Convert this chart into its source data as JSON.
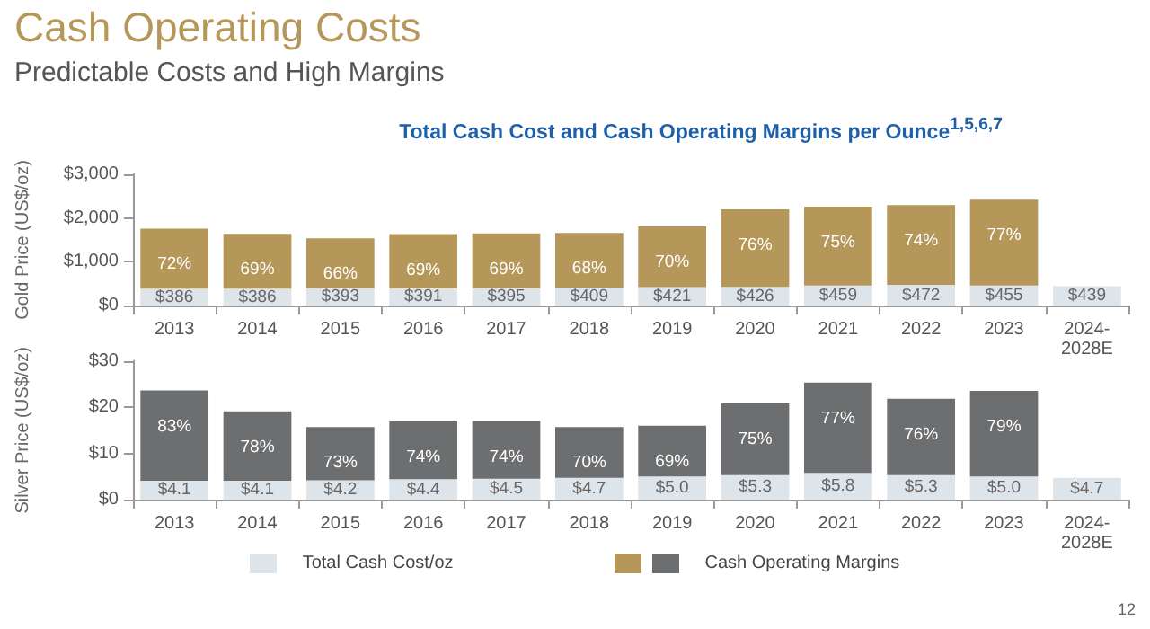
{
  "chart_data": [
    {
      "type": "bar",
      "title": "Cash Operating Costs",
      "subtitle": "Predictable Costs and High Margins",
      "annotations": [
        "Total Cash Cost and Cash Operating Margins per Ounce$^{1,5,6,7}$",
        {
          "text": "72%",
          "x": "2013",
          "y": 1756
        },
        {
          "text": "69%",
          "x": "2014",
          "y": 1636
        },
        {
          "text": "66%",
          "x": "2015",
          "y": 1533
        },
        {
          "text": "69%",
          "x": "2016",
          "y": 1631
        },
        {
          "text": "69%",
          "x": "2017",
          "y": 1645
        },
        {
          "text": "68%",
          "x": "2018",
          "y": 1659
        },
        {
          "text": "70%",
          "x": "2019",
          "y": 1811
        },
        {
          "text": "76%",
          "x": "2020",
          "y": 2196
        },
        {
          "text": "75%",
          "x": "2021",
          "y": 2259
        },
        {
          "text": "74%",
          "x": "2022",
          "y": 2292
        },
        {
          "text": "77%",
          "x": "2023",
          "y": 2415
        }
      ],
      "ylabel": "Gold Price (US$/oz)",
      "stacked": true,
      "categories": [
        "2013",
        "2014",
        "2015",
        "2016",
        "2017",
        "2018",
        "2019",
        "2020",
        "2021",
        "2022",
        "2023",
        "2024-2028E"
      ],
      "ylim": [
        0,
        3000
      ],
      "yticks": [
        {
          "value": 0,
          "label": "$0"
        },
        {
          "value": 1000,
          "label": "$1,000"
        },
        {
          "value": 2000,
          "label": "$2,000"
        },
        {
          "value": 3000,
          "label": "$3,000"
        }
      ],
      "series": [
        {
          "color": "#dde4ea",
          "values": [
            386,
            386,
            393,
            391,
            395,
            409,
            421,
            426,
            459,
            472,
            455,
            439
          ],
          "value_labels": [
            "$386",
            "$386",
            "$393",
            "$391",
            "$395",
            "$409",
            "$421",
            "$426",
            "$459",
            "$472",
            "$455",
            "$439"
          ]
        },
        {
          "color": "#b5975a",
          "values": [
            1370,
            1250,
            1140,
            1240,
            1250,
            1250,
            1390,
            1770,
            1800,
            1820,
            1960,
            null
          ]
        }
      ]
    },
    {
      "type": "bar",
      "ylabel": "Silver Price (US$/oz)",
      "stacked": true,
      "legend": "bottom",
      "annotations": [
        "12",
        {
          "text": "83%",
          "x": "2013",
          "y": 23.6
        },
        {
          "text": "78%",
          "x": "2014",
          "y": 19.1
        },
        {
          "text": "73%",
          "x": "2015",
          "y": 15.7
        },
        {
          "text": "74%",
          "x": "2016",
          "y": 16.9
        },
        {
          "text": "74%",
          "x": "2017",
          "y": 17
        },
        {
          "text": "70%",
          "x": "2018",
          "y": 15.7
        },
        {
          "text": "69%",
          "x": "2019",
          "y": 16
        },
        {
          "text": "75%",
          "x": "2020",
          "y": 20.8
        },
        {
          "text": "77%",
          "x": "2021",
          "y": 25.3
        },
        {
          "text": "76%",
          "x": "2022",
          "y": 21.8
        },
        {
          "text": "79%",
          "x": "2023",
          "y": 23.5
        }
      ],
      "categories": [
        "2013",
        "2014",
        "2015",
        "2016",
        "2017",
        "2018",
        "2019",
        "2020",
        "2021",
        "2022",
        "2023",
        "2024-2028E"
      ],
      "ylim": [
        0,
        30
      ],
      "yticks": [
        {
          "value": 0,
          "label": "$0"
        },
        {
          "value": 10,
          "label": "$10"
        },
        {
          "value": 20,
          "label": "$20"
        },
        {
          "value": 30,
          "label": "$30"
        }
      ],
      "series": [
        {
          "name": "Total Cash Cost/oz",
          "color": "#dde4ea",
          "values": [
            4.1,
            4.1,
            4.2,
            4.4,
            4.5,
            4.7,
            5.0,
            5.3,
            5.8,
            5.3,
            5.0,
            4.7
          ],
          "value_labels": [
            "$4.1",
            "$4.1",
            "$4.2",
            "$4.4",
            "$4.5",
            "$4.7",
            "$5.0",
            "$5.3",
            "$5.8",
            "$5.3",
            "$5.0",
            "$4.7"
          ]
        },
        {
          "name": "Cash Operating Margins",
          "color": "#6d6e70",
          "values": [
            19.5,
            15,
            11.5,
            12.5,
            12.5,
            11,
            11,
            15.5,
            19.5,
            16.5,
            18.5,
            null
          ]
        }
      ]
    }
  ]
}
